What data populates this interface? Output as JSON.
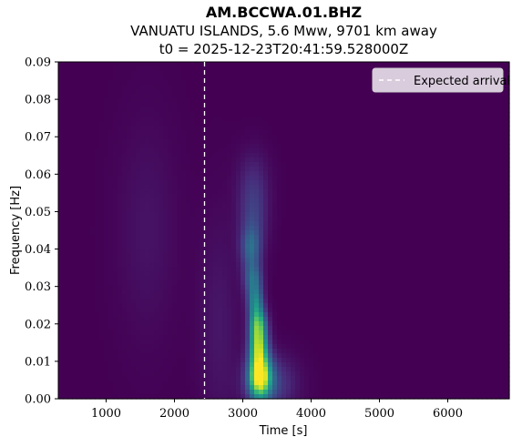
{
  "header": {
    "title": "AM.BCCWA.01.BHZ",
    "subtitle": "VANUATU ISLANDS, 5.6 Mww, 9701 km away",
    "t0_line": "t0 = 2025-12-23T20:41:59.528000Z"
  },
  "chart_data": {
    "type": "heatmap",
    "title": "AM.BCCWA.01.BHZ",
    "xlabel": "Time [s]",
    "ylabel": "Frequency [Hz]",
    "xlim": [
      300,
      6900
    ],
    "ylim": [
      0,
      0.09
    ],
    "x_ticks": [
      1000,
      2000,
      3000,
      4000,
      5000,
      6000
    ],
    "x_tick_labels": [
      "1000",
      "2000",
      "3000",
      "4000",
      "5000",
      "6000"
    ],
    "y_ticks": [
      0,
      0.01,
      0.02,
      0.03,
      0.04,
      0.05,
      0.06,
      0.07,
      0.08,
      0.09
    ],
    "y_tick_labels": [
      "0.00",
      "0.01",
      "0.02",
      "0.03",
      "0.04",
      "0.05",
      "0.06",
      "0.07",
      "0.08",
      "0.09"
    ],
    "colormap": "viridis",
    "expected_arrival_s": 2440,
    "legend": {
      "entries": [
        "Expected arrival"
      ],
      "placement": "top-right"
    },
    "energy_peaks": [
      {
        "t": 3250,
        "f": 0.006,
        "amp": 1.0,
        "st": 110,
        "sf": 0.004
      },
      {
        "t": 3230,
        "f": 0.014,
        "amp": 0.72,
        "st": 90,
        "sf": 0.0035
      },
      {
        "t": 3220,
        "f": 0.02,
        "amp": 0.6,
        "st": 85,
        "sf": 0.003
      },
      {
        "t": 3180,
        "f": 0.026,
        "amp": 0.4,
        "st": 80,
        "sf": 0.003
      },
      {
        "t": 3150,
        "f": 0.032,
        "amp": 0.32,
        "st": 90,
        "sf": 0.003
      },
      {
        "t": 3120,
        "f": 0.04,
        "amp": 0.3,
        "st": 100,
        "sf": 0.004
      },
      {
        "t": 3150,
        "f": 0.048,
        "amp": 0.16,
        "st": 140,
        "sf": 0.006
      },
      {
        "t": 3150,
        "f": 0.058,
        "amp": 0.1,
        "st": 160,
        "sf": 0.006
      },
      {
        "t": 1600,
        "f": 0.045,
        "amp": 0.05,
        "st": 300,
        "sf": 0.02
      },
      {
        "t": 3400,
        "f": 0.004,
        "amp": 0.2,
        "st": 250,
        "sf": 0.005
      },
      {
        "t": 2650,
        "f": 0.02,
        "amp": 0.06,
        "st": 200,
        "sf": 0.02
      }
    ]
  }
}
